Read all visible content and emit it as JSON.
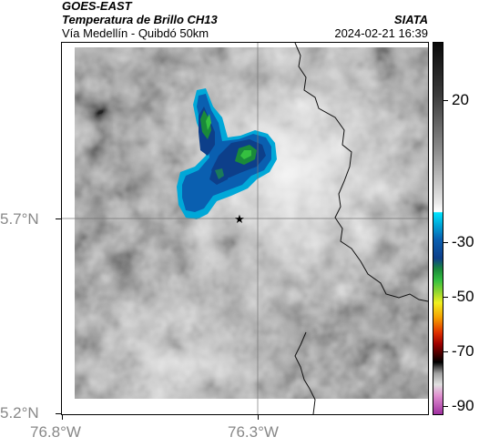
{
  "header": {
    "satellite": "GOES-EAST",
    "product": "Temperatura de Brillo CH13",
    "region": "Vía Medellín - Quibdó 50km",
    "organization": "SIATA",
    "timestamp": "2024-02-21 16:39"
  },
  "axes": {
    "lat_labels": [
      "5.7°N",
      "5.2°N"
    ],
    "lon_labels": [
      "76.8°W",
      "76.3°W"
    ]
  },
  "colorbar": {
    "labels": [
      "20",
      "-30",
      "-50",
      "-70",
      "-90"
    ]
  },
  "marker": {
    "icon": "star-icon"
  }
}
